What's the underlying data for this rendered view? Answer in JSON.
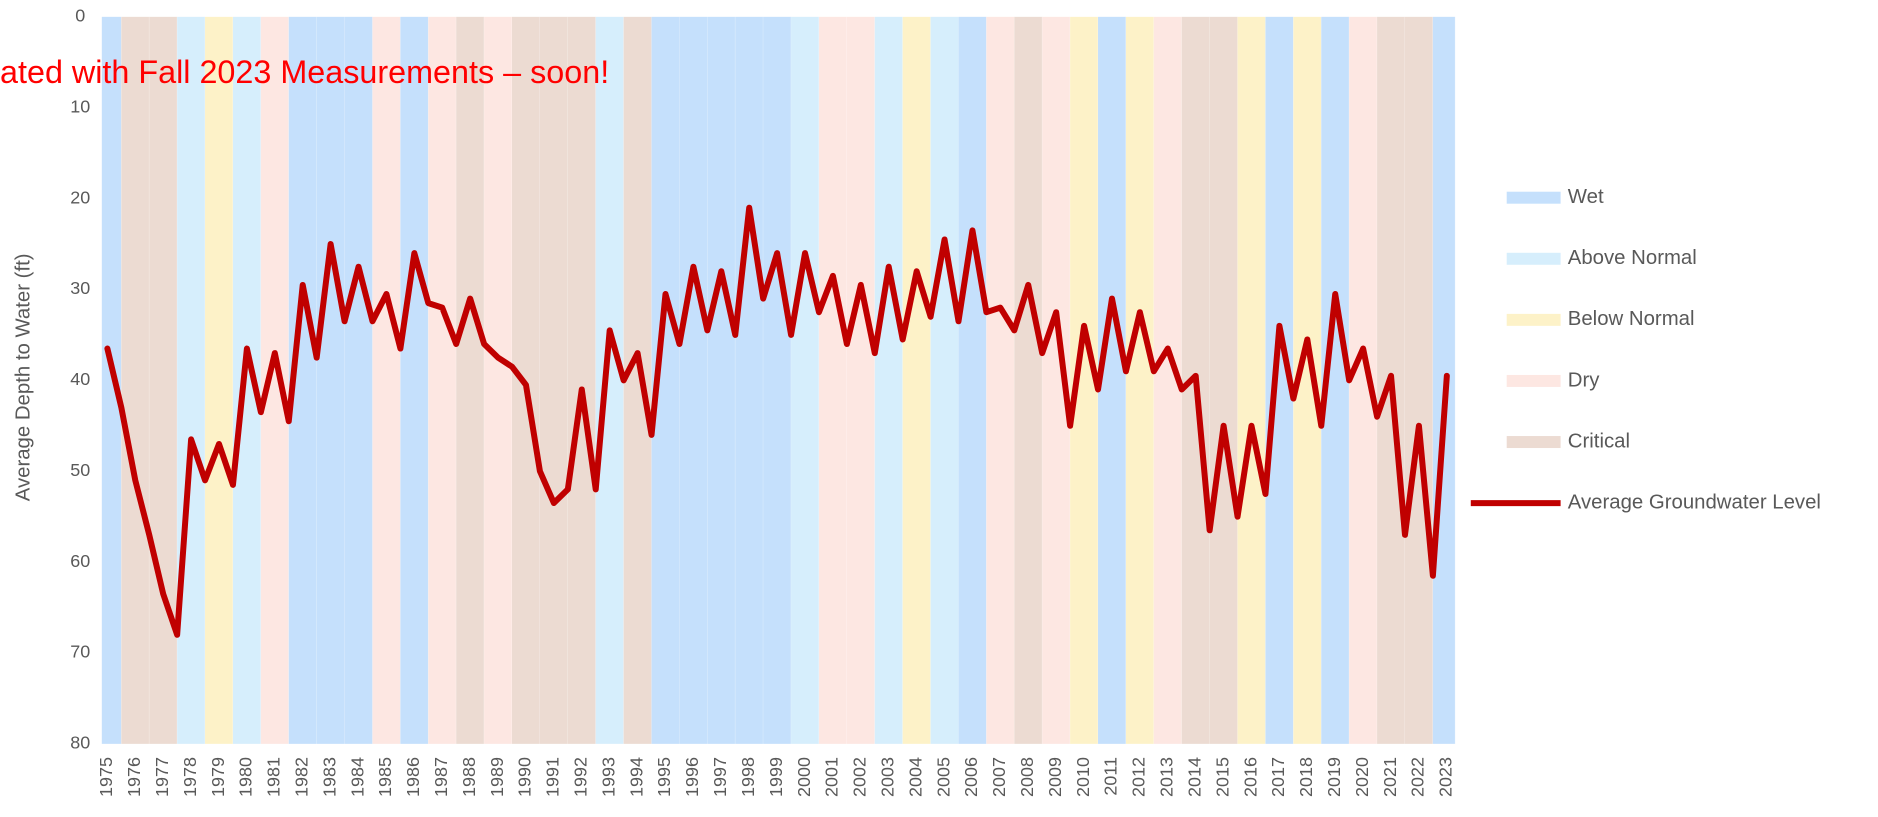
{
  "chart_data": {
    "type": "line",
    "annotation": "ated with Fall 2023 Measurements – soon!",
    "y_label": "Average Depth to Water (ft)",
    "ylim": [
      80,
      0
    ],
    "yticks": [
      0,
      10,
      20,
      30,
      40,
      50,
      60,
      70,
      80
    ],
    "xlim": [
      1974.8,
      2023.3
    ],
    "xticks": [
      1975,
      1976,
      1977,
      1978,
      1979,
      1980,
      1981,
      1982,
      1983,
      1984,
      1985,
      1986,
      1987,
      1988,
      1989,
      1990,
      1991,
      1992,
      1993,
      1994,
      1995,
      1996,
      1997,
      1998,
      1999,
      2000,
      2001,
      2002,
      2003,
      2004,
      2005,
      2006,
      2007,
      2008,
      2009,
      2010,
      2011,
      2012,
      2013,
      2014,
      2015,
      2016,
      2017,
      2018,
      2019,
      2020,
      2021,
      2022,
      2023
    ],
    "year_type_legend": [
      {
        "name": "Wet",
        "color": "#c5e0fc"
      },
      {
        "name": "Above Normal",
        "color": "#d6eefc"
      },
      {
        "name": "Below Normal",
        "color": "#fdf2c8"
      },
      {
        "name": "Dry",
        "color": "#fde7e2"
      },
      {
        "name": "Critical",
        "color": "#ecdbd2"
      }
    ],
    "year_types": [
      "Wet",
      "Critical",
      "Critical",
      "Above Normal",
      "Below Normal",
      "Above Normal",
      "Dry",
      "Wet",
      "Wet",
      "Wet",
      "Dry",
      "Wet",
      "Dry",
      "Critical",
      "Dry",
      "Critical",
      "Critical",
      "Critical",
      "Above Normal",
      "Critical",
      "Wet",
      "Wet",
      "Wet",
      "Wet",
      "Wet",
      "Above Normal",
      "Dry",
      "Dry",
      "Above Normal",
      "Below Normal",
      "Above Normal",
      "Wet",
      "Dry",
      "Critical",
      "Dry",
      "Below Normal",
      "Wet",
      "Below Normal",
      "Dry",
      "Critical",
      "Critical",
      "Below Normal",
      "Wet",
      "Below Normal",
      "Wet",
      "Dry",
      "Critical",
      "Critical",
      "Wet"
    ],
    "series": [
      {
        "name": "Average Groundwater Level",
        "color": "#c00000",
        "x": [
          1975,
          1975.5,
          1976,
          1976.5,
          1977,
          1977.5,
          1978,
          1978.5,
          1979,
          1979.5,
          1980,
          1980.5,
          1981,
          1981.5,
          1982,
          1982.5,
          1983,
          1983.5,
          1984,
          1984.5,
          1985,
          1985.5,
          1986,
          1986.5,
          1987,
          1987.5,
          1988,
          1988.5,
          1989,
          1989.5,
          1990,
          1990.5,
          1991,
          1991.5,
          1992,
          1992.5,
          1993,
          1993.5,
          1994,
          1994.5,
          1995,
          1995.5,
          1996,
          1996.5,
          1997,
          1997.5,
          1998,
          1998.5,
          1999,
          1999.5,
          2000,
          2000.5,
          2001,
          2001.5,
          2002,
          2002.5,
          2003,
          2003.5,
          2004,
          2004.5,
          2005,
          2005.5,
          2006,
          2006.5,
          2007,
          2007.5,
          2008,
          2008.5,
          2009,
          2009.5,
          2010,
          2010.5,
          2011,
          2011.5,
          2012,
          2012.5,
          2013,
          2013.5,
          2014,
          2014.5,
          2015,
          2015.5,
          2016,
          2016.5,
          2017,
          2017.5,
          2018,
          2018.5,
          2019,
          2019.5,
          2020,
          2020.5,
          2021,
          2021.5,
          2022,
          2022.5,
          2023
        ],
        "values": [
          36.5,
          43,
          51,
          57,
          63.5,
          68,
          46.5,
          51,
          47,
          51.5,
          36.5,
          43.5,
          37,
          44.5,
          29.5,
          37.5,
          25,
          33.5,
          27.5,
          33.5,
          30.5,
          36.5,
          26,
          31.5,
          32,
          36,
          31,
          36,
          37.5,
          38.5,
          40.5,
          50,
          53.5,
          52,
          41,
          52,
          34.5,
          40,
          37,
          46,
          30.5,
          36,
          27.5,
          34.5,
          28,
          35,
          21,
          31,
          26,
          35,
          26,
          32.5,
          28.5,
          36,
          29.5,
          37,
          27.5,
          35.5,
          28,
          33,
          24.5,
          33.5,
          23.5,
          32.5,
          32,
          34.5,
          29.5,
          37,
          32.5,
          45,
          34,
          41,
          31,
          39,
          32.5,
          39,
          36.5,
          41,
          39.5,
          56.5,
          45,
          55,
          45,
          52.5,
          34,
          42,
          35.5,
          45,
          30.5,
          40,
          36.5,
          44,
          39.5,
          57,
          45,
          61.5,
          39.5
        ]
      }
    ]
  }
}
